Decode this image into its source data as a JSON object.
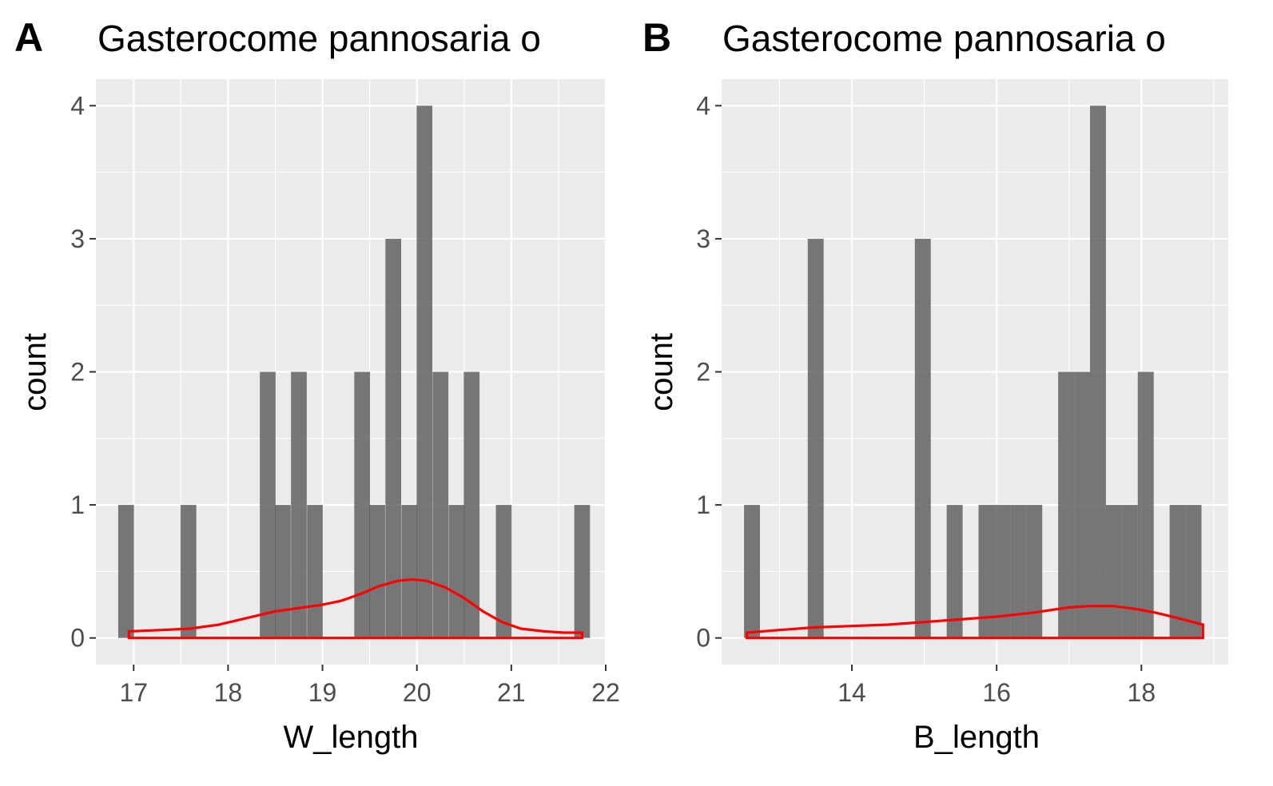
{
  "chart_data": [
    {
      "panel_tag": "A",
      "type": "bar",
      "subtype": "histogram with density overlay",
      "title": "Gasterocome pannosaria o",
      "xlabel": "W_length",
      "ylabel": "count",
      "xlim": [
        16.6,
        22
      ],
      "ylim": [
        -0.2,
        4.2
      ],
      "x_ticks": [
        17,
        18,
        19,
        20,
        21,
        22
      ],
      "y_ticks": [
        0,
        1,
        2,
        3,
        4
      ],
      "bin_width": 0.1667,
      "bins": [
        {
          "center": 16.92,
          "count": 1
        },
        {
          "center": 17.58,
          "count": 1
        },
        {
          "center": 18.42,
          "count": 2
        },
        {
          "center": 18.58,
          "count": 1
        },
        {
          "center": 18.75,
          "count": 2
        },
        {
          "center": 18.92,
          "count": 1
        },
        {
          "center": 19.42,
          "count": 2
        },
        {
          "center": 19.58,
          "count": 1
        },
        {
          "center": 19.75,
          "count": 3
        },
        {
          "center": 19.92,
          "count": 1
        },
        {
          "center": 20.08,
          "count": 4
        },
        {
          "center": 20.25,
          "count": 2
        },
        {
          "center": 20.42,
          "count": 1
        },
        {
          "center": 20.58,
          "count": 2
        },
        {
          "center": 20.92,
          "count": 1
        },
        {
          "center": 21.75,
          "count": 1
        }
      ],
      "density": {
        "x": [
          16.95,
          17.3,
          17.6,
          17.9,
          18.2,
          18.5,
          18.8,
          19.0,
          19.2,
          19.4,
          19.6,
          19.8,
          19.95,
          20.1,
          20.3,
          20.5,
          20.7,
          20.9,
          21.1,
          21.35,
          21.55,
          21.75
        ],
        "y": [
          0.05,
          0.06,
          0.07,
          0.1,
          0.15,
          0.2,
          0.23,
          0.25,
          0.28,
          0.33,
          0.39,
          0.43,
          0.44,
          0.43,
          0.38,
          0.3,
          0.2,
          0.12,
          0.07,
          0.05,
          0.04,
          0.04
        ]
      },
      "grid": true,
      "colors": {
        "panel_bg": "#ebebeb",
        "bar": "#595959",
        "density": "#ff0000"
      }
    },
    {
      "panel_tag": "B",
      "type": "bar",
      "subtype": "histogram with density overlay",
      "title": "Gasterocome pannosaria o",
      "xlabel": "B_length",
      "ylabel": "count",
      "xlim": [
        12.2,
        19.2
      ],
      "ylim": [
        -0.2,
        4.2
      ],
      "x_ticks": [
        14,
        16,
        18
      ],
      "y_ticks": [
        0,
        1,
        2,
        3,
        4
      ],
      "bin_width": 0.22,
      "bins": [
        {
          "center": 12.62,
          "count": 1
        },
        {
          "center": 13.5,
          "count": 3
        },
        {
          "center": 14.98,
          "count": 3
        },
        {
          "center": 15.42,
          "count": 1
        },
        {
          "center": 15.86,
          "count": 1
        },
        {
          "center": 16.08,
          "count": 1
        },
        {
          "center": 16.3,
          "count": 1
        },
        {
          "center": 16.52,
          "count": 1
        },
        {
          "center": 16.96,
          "count": 2
        },
        {
          "center": 17.18,
          "count": 2
        },
        {
          "center": 17.4,
          "count": 4
        },
        {
          "center": 17.62,
          "count": 1
        },
        {
          "center": 17.84,
          "count": 1
        },
        {
          "center": 18.06,
          "count": 2
        },
        {
          "center": 18.5,
          "count": 1
        },
        {
          "center": 18.72,
          "count": 1
        }
      ],
      "density": {
        "x": [
          12.55,
          13.0,
          13.5,
          14.0,
          14.5,
          15.0,
          15.5,
          16.0,
          16.5,
          17.0,
          17.3,
          17.6,
          17.9,
          18.2,
          18.5,
          18.85
        ],
        "y": [
          0.04,
          0.06,
          0.08,
          0.09,
          0.1,
          0.12,
          0.14,
          0.16,
          0.19,
          0.23,
          0.24,
          0.24,
          0.22,
          0.19,
          0.15,
          0.1
        ]
      },
      "grid": true,
      "colors": {
        "panel_bg": "#ebebeb",
        "bar": "#595959",
        "density": "#ff0000"
      }
    }
  ]
}
